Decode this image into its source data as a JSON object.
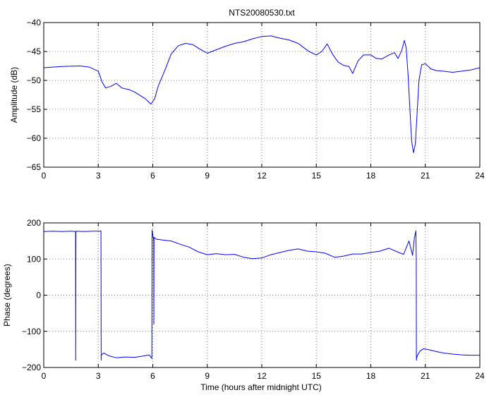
{
  "figure": {
    "title": "NTS20080530.txt",
    "xlabel": "Time (hours after midnight UTC)"
  },
  "colors": {
    "series": "#0000ff",
    "grid": "#7f7f7f",
    "axes": "#000000"
  },
  "chart_data": [
    {
      "type": "line",
      "title": "NTS20080530.txt",
      "xlabel": "",
      "ylabel": "Amplitude (dB)",
      "xlim": [
        0,
        24
      ],
      "ylim": [
        -65,
        -40
      ],
      "xticks": [
        0,
        3,
        6,
        9,
        12,
        15,
        18,
        21,
        24
      ],
      "yticks": [
        -65,
        -60,
        -55,
        -50,
        -45,
        -40
      ],
      "grid": true,
      "series": [
        {
          "x": [
            0,
            1,
            2,
            2.5,
            3.0,
            3.2,
            3.4,
            3.7,
            4.0,
            4.3,
            4.7,
            5.0,
            5.3,
            5.6,
            5.9,
            6.1,
            6.3,
            6.7,
            7.0,
            7.4,
            7.8,
            8.2,
            8.6,
            9.0,
            9.5,
            10.0,
            10.5,
            11.0,
            11.5,
            12.0,
            12.5,
            13.0,
            13.5,
            14.0,
            14.3,
            14.6,
            15.0,
            15.3,
            15.6,
            15.9,
            16.2,
            16.5,
            16.8,
            17.0,
            17.3,
            17.6,
            18.0,
            18.3,
            18.6,
            19.0,
            19.3,
            19.5,
            19.7,
            19.85,
            19.95,
            20.05,
            20.15,
            20.25,
            20.35,
            20.45,
            20.55,
            20.65,
            20.8,
            21.0,
            21.3,
            21.6,
            22.0,
            22.5,
            23.0,
            23.5,
            24.0
          ],
          "values": [
            -47.8,
            -47.6,
            -47.5,
            -47.7,
            -48.4,
            -50.2,
            -51.3,
            -51.0,
            -50.5,
            -51.3,
            -51.6,
            -52.0,
            -52.6,
            -53.2,
            -54.1,
            -53.2,
            -51.0,
            -48.0,
            -45.5,
            -44.0,
            -43.6,
            -43.8,
            -44.6,
            -45.3,
            -44.7,
            -44.1,
            -43.6,
            -43.3,
            -42.8,
            -42.4,
            -42.3,
            -42.7,
            -43.0,
            -43.6,
            -44.3,
            -45.0,
            -45.6,
            -45.0,
            -43.7,
            -45.5,
            -46.8,
            -47.4,
            -47.6,
            -48.8,
            -46.6,
            -45.6,
            -45.6,
            -46.2,
            -46.3,
            -45.6,
            -45.2,
            -46.2,
            -44.8,
            -43.1,
            -44.4,
            -49.0,
            -55.0,
            -60.5,
            -62.5,
            -61.0,
            -55.5,
            -50.0,
            -47.3,
            -47.1,
            -48.0,
            -48.3,
            -48.4,
            -48.6,
            -48.4,
            -48.2,
            -47.8
          ]
        }
      ]
    },
    {
      "type": "line",
      "title": "",
      "xlabel": "Time (hours after midnight UTC)",
      "ylabel": "Phase (degrees)",
      "xlim": [
        0,
        24
      ],
      "ylim": [
        -200,
        200
      ],
      "xticks": [
        0,
        3,
        6,
        9,
        12,
        15,
        18,
        21,
        24
      ],
      "yticks": [
        -200,
        -100,
        0,
        100,
        200
      ],
      "grid": true,
      "series": [
        {
          "x": [
            0,
            0.5,
            1.0,
            1.5,
            1.75,
            1.76,
            1.77,
            1.8,
            2.2,
            2.7,
            3.1,
            3.15,
            3.16,
            3.17,
            3.3,
            3.6,
            4.0,
            4.5,
            5.0,
            5.5,
            5.8,
            5.95,
            5.96,
            6.0,
            6.05,
            6.06,
            6.07,
            6.2,
            6.5,
            7.0,
            7.5,
            8.0,
            8.5,
            9.0,
            9.5,
            10.0,
            10.5,
            11.0,
            11.5,
            12.0,
            12.5,
            13.0,
            13.5,
            14.0,
            14.5,
            15.0,
            15.5,
            16.0,
            16.5,
            17.0,
            17.5,
            18.0,
            18.5,
            19.0,
            19.5,
            19.8,
            20.1,
            20.3,
            20.4,
            20.48,
            20.5,
            20.51,
            20.52,
            20.55,
            20.7,
            20.9,
            21.2,
            21.6,
            22.0,
            22.5,
            23.0,
            23.5,
            24.0
          ],
          "values": [
            176,
            177,
            176,
            177,
            176,
            -180,
            176,
            177,
            176,
            177,
            177,
            178,
            -180,
            -165,
            -160,
            -168,
            -173,
            -171,
            -172,
            -168,
            -165,
            -175,
            180,
            168,
            152,
            -80,
            160,
            155,
            153,
            150,
            141,
            133,
            120,
            112,
            115,
            112,
            113,
            105,
            101,
            103,
            112,
            118,
            124,
            128,
            122,
            120,
            116,
            105,
            108,
            114,
            114,
            118,
            122,
            130,
            119,
            113,
            150,
            110,
            160,
            178,
            100,
            -180,
            -175,
            -168,
            -155,
            -148,
            -151,
            -156,
            -160,
            -163,
            -165,
            -166,
            -166
          ]
        }
      ]
    }
  ]
}
